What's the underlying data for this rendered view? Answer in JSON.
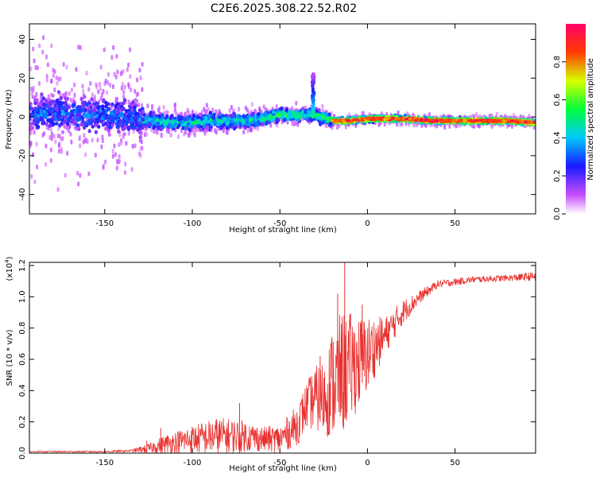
{
  "title": "C2E6.2025.308.22.52.R02",
  "colors": {
    "snr_line": "#e8312f",
    "background": "#ffffff"
  },
  "chart_data": [
    {
      "type": "heatmap",
      "xlabel": "Height of straight line (km)",
      "ylabel": "Frequency (Hz)",
      "xlim": [
        -193,
        96
      ],
      "ylim": [
        -50,
        48
      ],
      "x_ticks": [
        -150,
        -100,
        -50,
        0,
        50
      ],
      "x_tick_labels": [
        "-150",
        "-100",
        "-50",
        "0",
        "50"
      ],
      "y_ticks": [
        -40,
        -20,
        0,
        20,
        40
      ],
      "y_tick_labels": [
        "-40",
        "-20",
        "0",
        "20",
        "40"
      ],
      "colorbar": {
        "label": "Normalized spectral amplitude",
        "range": [
          0,
          1
        ],
        "ticks": [
          0,
          0.2,
          0.4,
          0.6,
          0.8
        ],
        "tick_labels": [
          "0.0",
          "0.2",
          "0.4",
          "0.6",
          "0.8"
        ]
      },
      "ridge": [
        {
          "x": -190,
          "freq": 2
        },
        {
          "x": -175,
          "freq": 2
        },
        {
          "x": -160,
          "freq": 1
        },
        {
          "x": -145,
          "freq": 0
        },
        {
          "x": -130,
          "freq": -1
        },
        {
          "x": -120,
          "freq": -2
        },
        {
          "x": -110,
          "freq": -3
        },
        {
          "x": -100,
          "freq": -3
        },
        {
          "x": -90,
          "freq": -2
        },
        {
          "x": -80,
          "freq": -2
        },
        {
          "x": -70,
          "freq": -2
        },
        {
          "x": -60,
          "freq": -1
        },
        {
          "x": -50,
          "freq": 1
        },
        {
          "x": -40,
          "freq": 1
        },
        {
          "x": -30,
          "freq": 1
        },
        {
          "x": -20,
          "freq": -2
        },
        {
          "x": -10,
          "freq": -2
        },
        {
          "x": 0,
          "freq": -1
        },
        {
          "x": 10,
          "freq": -1
        },
        {
          "x": 20,
          "freq": -1
        },
        {
          "x": 40,
          "freq": -2
        },
        {
          "x": 60,
          "freq": -2
        },
        {
          "x": 80,
          "freq": -2
        },
        {
          "x": 95,
          "freq": -3
        }
      ],
      "bands": [
        {
          "x_from": -193,
          "x_to": -128,
          "freq_spread": 12,
          "scatter_spread": 48,
          "amplitude": 0.3
        },
        {
          "x_from": -128,
          "x_to": -60,
          "freq_spread": 5,
          "scatter_spread": 10,
          "amplitude": 0.45
        },
        {
          "x_from": -60,
          "x_to": -20,
          "freq_spread": 4,
          "scatter_spread": 7,
          "amplitude": 0.55
        },
        {
          "x_from": -20,
          "x_to": 96,
          "freq_spread": 2,
          "scatter_spread": 4,
          "amplitude": 0.85
        }
      ],
      "spike": {
        "x": -31,
        "freq_top": 22,
        "amplitude": 0.4
      }
    },
    {
      "type": "line",
      "xlabel": "Height of straight line (km)",
      "ylabel": "SNR (10 * v/v)",
      "scale_label": "(x10",
      "scale_exponent": "4",
      "scale_close": ")",
      "xlim": [
        -193,
        96
      ],
      "ylim": [
        0,
        1.22
      ],
      "x_ticks": [
        -150,
        -100,
        -50,
        0,
        50
      ],
      "x_tick_labels": [
        "-150",
        "-100",
        "-50",
        "0",
        "50"
      ],
      "y_ticks": [
        0,
        0.2,
        0.4,
        0.6,
        0.8,
        1.0,
        1.2
      ],
      "y_tick_labels": [
        "0.0",
        "0.2",
        "0.4",
        "0.6",
        "0.8",
        "1.0",
        "1.2"
      ],
      "envelope": {
        "x": [
          -193,
          -170,
          -150,
          -135,
          -125,
          -115,
          -100,
          -85,
          -70,
          -60,
          -50,
          -40,
          -35,
          -30,
          -25,
          -20,
          -15,
          -10,
          -5,
          0,
          10,
          20,
          30,
          40,
          60,
          80,
          96
        ],
        "mean": [
          0.01,
          0.01,
          0.01,
          0.015,
          0.03,
          0.06,
          0.09,
          0.11,
          0.11,
          0.09,
          0.09,
          0.18,
          0.3,
          0.35,
          0.35,
          0.45,
          0.5,
          0.55,
          0.58,
          0.63,
          0.75,
          0.9,
          1.0,
          1.08,
          1.11,
          1.12,
          1.13
        ],
        "spread": [
          0.004,
          0.005,
          0.006,
          0.008,
          0.03,
          0.06,
          0.09,
          0.12,
          0.1,
          0.08,
          0.09,
          0.13,
          0.15,
          0.2,
          0.25,
          0.35,
          0.4,
          0.35,
          0.3,
          0.25,
          0.12,
          0.08,
          0.04,
          0.025,
          0.02,
          0.02,
          0.03
        ]
      },
      "peaks": [
        {
          "x": -126,
          "value": 0.08
        },
        {
          "x": -118,
          "value": 0.16
        },
        {
          "x": -73,
          "value": 0.32
        },
        {
          "x": -27,
          "value": 0.62
        },
        {
          "x": -17,
          "value": 1.02
        },
        {
          "x": -13,
          "value": 1.22
        },
        {
          "x": -3,
          "value": 0.95
        }
      ]
    }
  ]
}
